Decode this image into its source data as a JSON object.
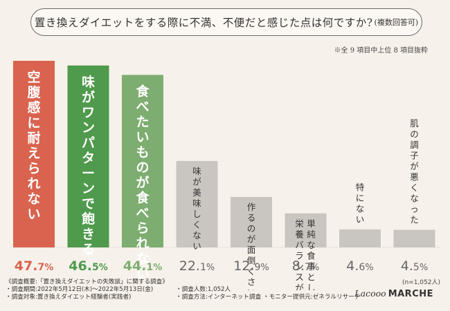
{
  "title": {
    "main": "置き換えダイエットをする際に不満、不便だと感じた点は何ですか?",
    "sub": "(複数回答可)"
  },
  "note_top": "※全 9 項目中上位 8 項目抜粋",
  "sample_size": "(n=1,052人)",
  "colors": {
    "top1": "#d9634f",
    "top2": "#4f9a4c",
    "top3": "#7dad70",
    "rest": "#c9c6c2",
    "bar_text": "#ffffff",
    "rest_text": "#333333"
  },
  "chart_data": {
    "type": "bar",
    "title": "置き換えダイエットをする際に不満、不便だと感じた点は何ですか?(複数回答可)",
    "unit": "%",
    "ylim": [
      0,
      47.7
    ],
    "categories": [
      [
        "空腹感に耐えられない"
      ],
      [
        "味がワンパターンで飽きる"
      ],
      [
        "食べたいものが食べられない"
      ],
      [
        "味が美味しくない"
      ],
      [
        "作るのが面倒くさい"
      ],
      [
        "単純な食事としての",
        "栄養バランスが悪い"
      ],
      [
        "特にない"
      ],
      [
        "肌の調子が悪くなった"
      ]
    ],
    "values": [
      47.7,
      46.5,
      44.1,
      22.1,
      12.9,
      8.7,
      4.6,
      4.5
    ],
    "value_labels": [
      {
        "int": "47.",
        "dec": "7",
        "unit": "%"
      },
      {
        "int": "46.",
        "dec": "5",
        "unit": "%"
      },
      {
        "int": "44.",
        "dec": "1",
        "unit": "%"
      },
      {
        "int": "22.",
        "dec": "1",
        "unit": "%"
      },
      {
        "int": "12.",
        "dec": "9",
        "unit": "%"
      },
      {
        "int": "8.",
        "dec": "7",
        "unit": "%"
      },
      {
        "int": "4.",
        "dec": "6",
        "unit": "%"
      },
      {
        "int": "4.",
        "dec": "5",
        "unit": "%"
      }
    ]
  },
  "footer": {
    "line1": "《調査概要:「置き換えダイエットの失敗談」に関する調査》",
    "line2a": "・調査期間:2022年5月12日(木)〜2022年5月13日(金)",
    "line2b": "・調査人数:1,052人",
    "line3a": "・調査対象:置き換えダイエット経験者(実践者)",
    "line3b": "・調査方法:インターネット調査",
    "line3c": "・モニター提供元:ゼネラルリサーチ"
  },
  "logo": {
    "script": "Lacooo",
    "bold": "MARCHE"
  }
}
